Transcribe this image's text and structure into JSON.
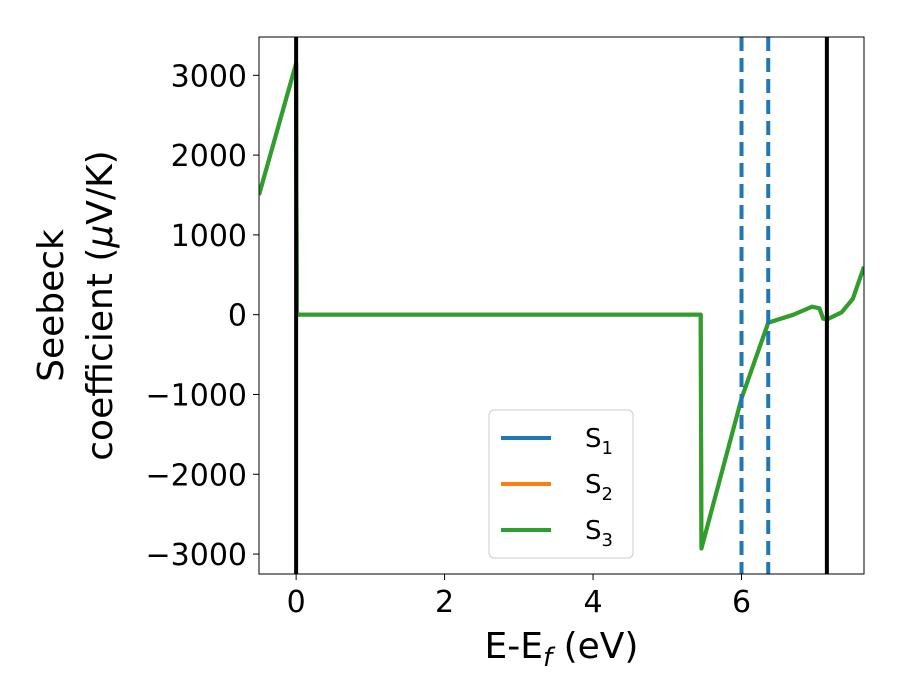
{
  "chart_data": {
    "type": "line",
    "xlabel": "E-E",
    "xlabel_sub": "f",
    "xlabel_unit": " (eV)",
    "ylabel_line1": "Seebeck",
    "ylabel_line2": "coefficient  (",
    "ylabel_mu": "μ",
    "ylabel_unit": "V/K)",
    "xlim": [
      -0.5,
      7.65
    ],
    "ylim": [
      -3250,
      3480
    ],
    "xticks": [
      0,
      2,
      4,
      6
    ],
    "xtick_labels": [
      "0",
      "2",
      "4",
      "6"
    ],
    "yticks": [
      -3000,
      -2000,
      -1000,
      0,
      1000,
      2000,
      3000
    ],
    "ytick_labels": [
      "−3000",
      "−2000",
      "−1000",
      "0",
      "1000",
      "2000",
      "3000"
    ],
    "vlines_solid": [
      0.0,
      7.15
    ],
    "vlines_dashed": [
      6.0,
      6.36
    ],
    "legend_position": "lower-center",
    "colors": {
      "S1": "#1f77b4",
      "S2": "#ff7f0e",
      "S3": "#2ca02c",
      "vline_solid": "#000000",
      "vline_dashed": "#1f77b4"
    },
    "series": [
      {
        "name": "S",
        "sub": "1",
        "color": "#1f77b4",
        "x": [
          -0.5,
          0.0,
          0.01,
          0.1,
          1,
          2,
          3,
          4,
          5,
          5.45,
          5.46,
          6.0,
          6.36,
          6.7,
          6.95,
          7.05,
          7.1,
          7.15,
          7.35,
          7.5,
          7.65
        ],
        "y": [
          1500,
          3150,
          0,
          0,
          0,
          0,
          0,
          0,
          0,
          0,
          -2930,
          -1050,
          -100,
          0,
          100,
          80,
          -50,
          -60,
          30,
          200,
          600
        ]
      },
      {
        "name": "S",
        "sub": "2",
        "color": "#ff7f0e",
        "x": [
          -0.5,
          0.0,
          0.01,
          0.1,
          1,
          2,
          3,
          4,
          5,
          5.45,
          5.46,
          6.0,
          6.36,
          6.7,
          6.95,
          7.05,
          7.1,
          7.15,
          7.35,
          7.5,
          7.65
        ],
        "y": [
          1500,
          3150,
          0,
          0,
          0,
          0,
          0,
          0,
          0,
          0,
          -2930,
          -1050,
          -100,
          0,
          100,
          80,
          -50,
          -60,
          30,
          200,
          600
        ]
      },
      {
        "name": "S",
        "sub": "3",
        "color": "#2ca02c",
        "x": [
          -0.5,
          0.0,
          0.01,
          0.1,
          1,
          2,
          3,
          4,
          5,
          5.45,
          5.46,
          6.0,
          6.36,
          6.7,
          6.95,
          7.05,
          7.1,
          7.15,
          7.35,
          7.5,
          7.65
        ],
        "y": [
          1500,
          3150,
          0,
          0,
          0,
          0,
          0,
          0,
          0,
          0,
          -2930,
          -1050,
          -100,
          0,
          100,
          80,
          -50,
          -60,
          30,
          200,
          600
        ]
      }
    ]
  }
}
